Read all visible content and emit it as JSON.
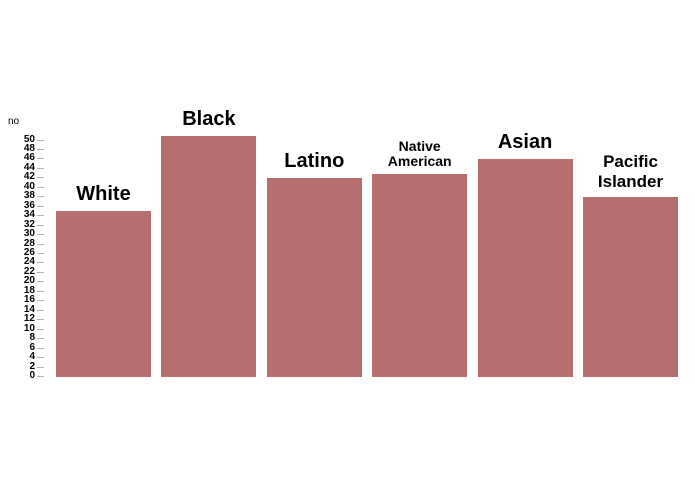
{
  "chart": {
    "ylabel": "no"
  },
  "chart_data": {
    "type": "bar",
    "title": "",
    "xlabel": "",
    "ylabel": "no",
    "categories": [
      "White",
      "Black",
      "Latino",
      "Native American",
      "Asian",
      "Pacific Islander"
    ],
    "values": [
      35,
      51,
      42,
      43,
      46,
      38
    ],
    "label_lines": [
      [
        "White"
      ],
      [
        "Black"
      ],
      [
        "Latino"
      ],
      [
        "Native",
        "American"
      ],
      [
        "Asian"
      ],
      [
        "Pacific",
        "Islander"
      ]
    ],
    "ylim": [
      0,
      50
    ],
    "ytick_step": 2,
    "bar_color": "#b76e6e",
    "tick_color": "#b3b3b3",
    "grid": false,
    "legend": false
  }
}
